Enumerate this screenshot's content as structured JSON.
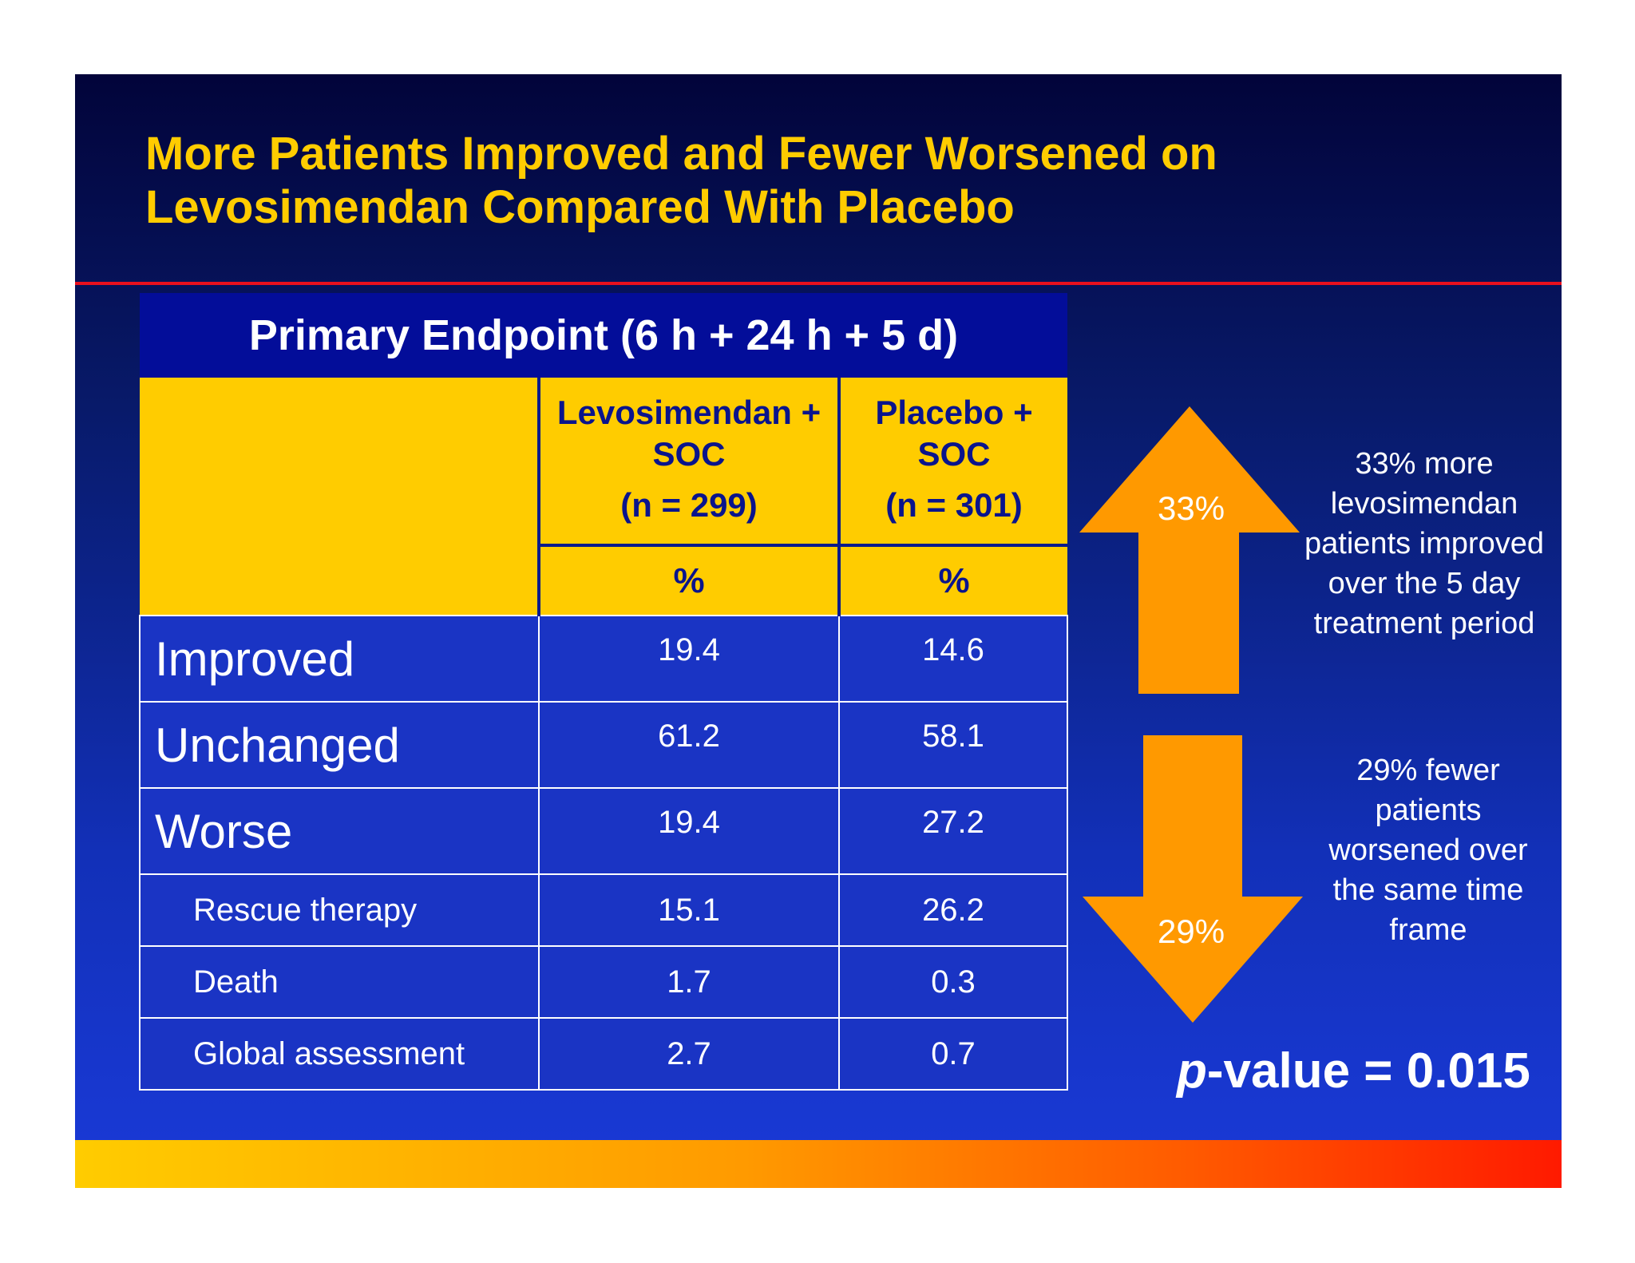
{
  "title": {
    "line1": "More Patients Improved and Fewer Worsened on",
    "line2": "Levosimendan Compared With Placebo"
  },
  "table": {
    "header": "Primary Endpoint (6 h + 24 h + 5 d)",
    "columns": [
      {
        "label": "Levosimendan + SOC",
        "n": "(n = 299)",
        "unit": "%"
      },
      {
        "label": "Placebo + SOC",
        "n": "(n = 301)",
        "unit": "%"
      }
    ],
    "rows": [
      {
        "label": "Improved",
        "levo": "19.4",
        "placebo": "14.6"
      },
      {
        "label": "Unchanged",
        "levo": "61.2",
        "placebo": "58.1"
      },
      {
        "label": "Worse",
        "levo": "19.4",
        "placebo": "27.2"
      },
      {
        "label": "Rescue therapy",
        "levo": "15.1",
        "placebo": "26.2"
      },
      {
        "label": "Death",
        "levo": "1.7",
        "placebo": "0.3"
      },
      {
        "label": "Global assessment",
        "levo": "2.7",
        "placebo": "0.7"
      }
    ]
  },
  "arrows": {
    "up_label": "33%",
    "down_label": "29%",
    "up_note": "33% more levosimendan patients improved over the 5 day treatment period",
    "down_note": "29% fewer patients worsened over the same time frame"
  },
  "pvalue": {
    "prefix": "p",
    "rest": "-value = 0.015"
  },
  "colors": {
    "title": "#ffcc00",
    "arrow": "#ff9900",
    "table_header": "#030d99",
    "table_yellow": "#ffcc00",
    "red_rule": "#e8101e"
  }
}
